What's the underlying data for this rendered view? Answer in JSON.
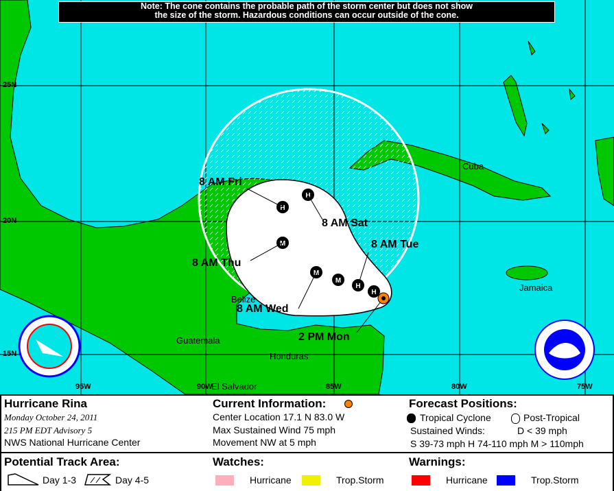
{
  "note": {
    "line1": "Note: The cone contains the probable path of the storm center but does not show",
    "line2": "the size of the storm. Hazardous conditions can occur outside of the cone."
  },
  "map": {
    "colors": {
      "water": "#00e5e5",
      "land": "#00c800",
      "cone": "#ffffff",
      "current": "#ff8000"
    },
    "lat_labels": [
      "25N",
      "20N",
      "15N"
    ],
    "lon_labels": [
      "95W",
      "90W",
      "85W",
      "80W",
      "75W"
    ],
    "forecast_labels": [
      "8 AM Fri",
      "8 AM Sat",
      "8 AM Tue",
      "8 AM Thu",
      "8 AM Wed",
      "2 PM Mon"
    ],
    "place_labels": [
      "Cuba",
      "Jamaica",
      "Belize",
      "Guatemala",
      "Honduras",
      "El Salvador"
    ],
    "track_points": [
      "H",
      "H",
      "M",
      "M",
      "M",
      "H",
      "H"
    ],
    "logos": [
      "National Weather Service",
      "NOAA"
    ]
  },
  "legend": {
    "storm_name": "Hurricane Rina",
    "date": "Monday   October 24, 2011",
    "advisory": "215 PM EDT Advisory 5",
    "center": "NWS National Hurricane Center",
    "current_title": "Current Information:",
    "location": "Center Location 17.1 N  83.0 W",
    "wind": "Max Sustained Wind  75 mph",
    "movement": "Movement NW at  5 mph",
    "forecast_title": "Forecast Positions:",
    "tropical": "Tropical Cyclone",
    "post_tropical": "Post-Tropical",
    "sustained": "Sustained Winds:",
    "d_range": "D  < 39 mph",
    "ranges": "S  39-73 mph  H  74-110 mph  M  > 110mph",
    "track_title": "Potential Track Area:",
    "day13": "Day 1-3",
    "day45": "Day 4-5",
    "watches_title": "Watches:",
    "warnings_title": "Warnings:",
    "watch_hurricane": "Hurricane",
    "watch_ts": "Trop.Storm",
    "warn_hurricane": "Hurricane",
    "warn_ts": "Trop.Storm",
    "colors": {
      "watch_hurricane": "#ffaebc",
      "watch_ts": "#f0f000",
      "warn_hurricane": "#ff0000",
      "warn_ts": "#0000ff"
    }
  }
}
